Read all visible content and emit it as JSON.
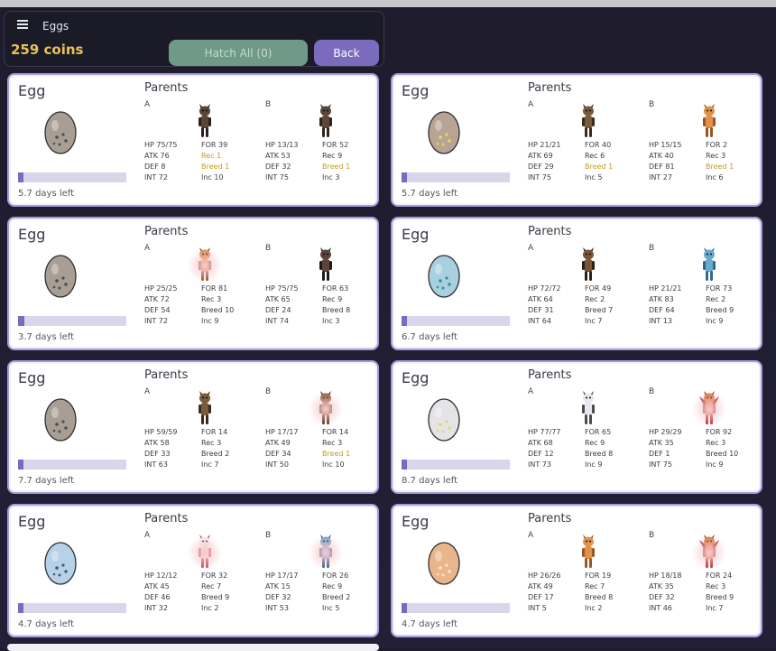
{
  "header": {
    "title": "Eggs",
    "coins": "259 coins",
    "hatch_label": "Hatch All (0)",
    "back_label": "Back"
  },
  "labels": {
    "egg": "Egg",
    "parents": "Parents",
    "a": "A",
    "b": "B"
  },
  "colors": {
    "accent": "#7a6bbd",
    "coins": "#e6c35a",
    "hatch": "#6f9a88",
    "highlight": "#c79a22"
  },
  "cards": [
    {
      "egg_color": "#a89e93",
      "dot_color": "#4c4c54",
      "progress": 0.04,
      "days": "5.7 days left",
      "a": {
        "creature": "dark-brown-bat",
        "hp": "HP 75/75",
        "atk": "ATK 76",
        "def": "DEF 8",
        "int": "INT 72",
        "for": "FOR 39",
        "rec": "Rec 1",
        "breed": "Breed 1",
        "inc": "Inc 10",
        "rec_hl": true,
        "breed_hl": true
      },
      "b": {
        "creature": "dark-brown-dog",
        "hp": "HP 13/13",
        "atk": "ATK 53",
        "def": "DEF 32",
        "int": "INT 75",
        "for": "FOR 52",
        "rec": "Rec 9",
        "breed": "Breed 1",
        "inc": "Inc 3",
        "rec_hl": false,
        "breed_hl": true
      }
    },
    {
      "egg_color": "#b8a492",
      "dot_color": "#e8d27a",
      "progress": 0.04,
      "days": "5.7 days left",
      "a": {
        "creature": "brown-bat",
        "hp": "HP 21/21",
        "atk": "ATK 69",
        "def": "DEF 29",
        "int": "INT 75",
        "for": "FOR 40",
        "rec": "Rec 6",
        "breed": "Breed 1",
        "inc": "Inc 5",
        "rec_hl": false,
        "breed_hl": true
      },
      "b": {
        "creature": "orange-fox",
        "hp": "HP 15/15",
        "atk": "ATK 40",
        "def": "DEF 81",
        "int": "INT 27",
        "for": "FOR 2",
        "rec": "Rec 3",
        "breed": "Breed 1",
        "inc": "Inc 6",
        "rec_hl": false,
        "breed_hl": true
      }
    },
    {
      "egg_color": "#a89e93",
      "dot_color": "#4c4c54",
      "progress": 0.06,
      "days": "3.7 days left",
      "a": {
        "creature": "orange-monkey",
        "hp": "HP 25/25",
        "atk": "ATK 72",
        "def": "DEF 54",
        "int": "INT 72",
        "for": "FOR 81",
        "rec": "Rec 3",
        "breed": "Breed 10",
        "inc": "Inc 9",
        "rec_hl": false,
        "breed_hl": false
      },
      "b": {
        "creature": "dark-masked-dog",
        "hp": "HP 75/75",
        "atk": "ATK 65",
        "def": "DEF 24",
        "int": "INT 74",
        "for": "FOR 63",
        "rec": "Rec 9",
        "breed": "Breed 8",
        "inc": "Inc 3",
        "rec_hl": false,
        "breed_hl": false
      }
    },
    {
      "egg_color": "#a9d0df",
      "dot_color": "#3a8aa8",
      "progress": 0.04,
      "days": "6.7 days left",
      "a": {
        "creature": "masked-brown-dog",
        "hp": "HP 72/72",
        "atk": "ATK 64",
        "def": "DEF 31",
        "int": "INT 64",
        "for": "FOR 49",
        "rec": "Rec 2",
        "breed": "Breed 7",
        "inc": "Inc 7",
        "rec_hl": false,
        "breed_hl": false
      },
      "b": {
        "creature": "blue-crowned-dog",
        "hp": "HP 21/21",
        "atk": "ATK 83",
        "def": "DEF 64",
        "int": "INT 13",
        "for": "FOR 73",
        "rec": "Rec 2",
        "breed": "Breed 9",
        "inc": "Inc 9",
        "rec_hl": false,
        "breed_hl": false
      }
    },
    {
      "egg_color": "#a89e93",
      "dot_color": "#4c4c54",
      "progress": 0.03,
      "days": "7.7 days left",
      "a": {
        "creature": "brown-bat",
        "hp": "HP 59/59",
        "atk": "ATK 58",
        "def": "DEF 33",
        "int": "INT 63",
        "for": "FOR 14",
        "rec": "Rec 3",
        "breed": "Breed 2",
        "inc": "Inc 7",
        "rec_hl": false,
        "breed_hl": false
      },
      "b": {
        "creature": "brown-monkey",
        "hp": "HP 17/17",
        "atk": "ATK 49",
        "def": "DEF 34",
        "int": "INT 50",
        "for": "FOR 14",
        "rec": "Rec 3",
        "breed": "Breed 1",
        "inc": "Inc 10",
        "rec_hl": false,
        "breed_hl": true
      }
    },
    {
      "egg_color": "#e4e4e6",
      "dot_color": "#e8d27a",
      "progress": 0.02,
      "days": "8.7 days left",
      "a": {
        "creature": "white-raccoon",
        "hp": "HP 77/77",
        "atk": "ATK 68",
        "def": "DEF 12",
        "int": "INT 73",
        "for": "FOR 65",
        "rec": "Rec 9",
        "breed": "Breed 8",
        "inc": "Inc 9",
        "rec_hl": false,
        "breed_hl": false
      },
      "b": {
        "creature": "red-winged-demon",
        "hp": "HP 29/29",
        "atk": "ATK 35",
        "def": "DEF 1",
        "int": "INT 75",
        "for": "FOR 92",
        "rec": "Rec 3",
        "breed": "Breed 10",
        "inc": "Inc 9",
        "rec_hl": false,
        "breed_hl": false
      }
    },
    {
      "egg_color": "#b6d1e8",
      "dot_color": "#3a5f7a",
      "progress": 0.05,
      "days": "4.7 days left",
      "a": {
        "creature": "white-red-rabbit",
        "hp": "HP 12/12",
        "atk": "ATK 45",
        "def": "DEF 46",
        "int": "INT 32",
        "for": "FOR 32",
        "rec": "Rec 7",
        "breed": "Breed 9",
        "inc": "Inc 2",
        "rec_hl": false,
        "breed_hl": false
      },
      "b": {
        "creature": "blue-monkey",
        "hp": "HP 17/17",
        "atk": "ATK 15",
        "def": "DEF 32",
        "int": "INT 53",
        "for": "FOR 26",
        "rec": "Rec 9",
        "breed": "Breed 2",
        "inc": "Inc 5",
        "rec_hl": false,
        "breed_hl": false
      }
    },
    {
      "egg_color": "#e9b68c",
      "dot_color": "#f5e6d2",
      "progress": 0.05,
      "days": "4.7 days left",
      "a": {
        "creature": "orange-fox",
        "hp": "HP 26/26",
        "atk": "ATK 49",
        "def": "DEF 17",
        "int": "INT 5",
        "for": "FOR 19",
        "rec": "Rec 7",
        "breed": "Breed 8",
        "inc": "Inc 2",
        "rec_hl": false,
        "breed_hl": false
      },
      "b": {
        "creature": "red-winged-demon",
        "hp": "HP 18/18",
        "atk": "ATK 35",
        "def": "DEF 32",
        "int": "INT 46",
        "for": "FOR 24",
        "rec": "Rec 3",
        "breed": "Breed 9",
        "inc": "Inc 7",
        "rec_hl": false,
        "breed_hl": false
      }
    }
  ]
}
